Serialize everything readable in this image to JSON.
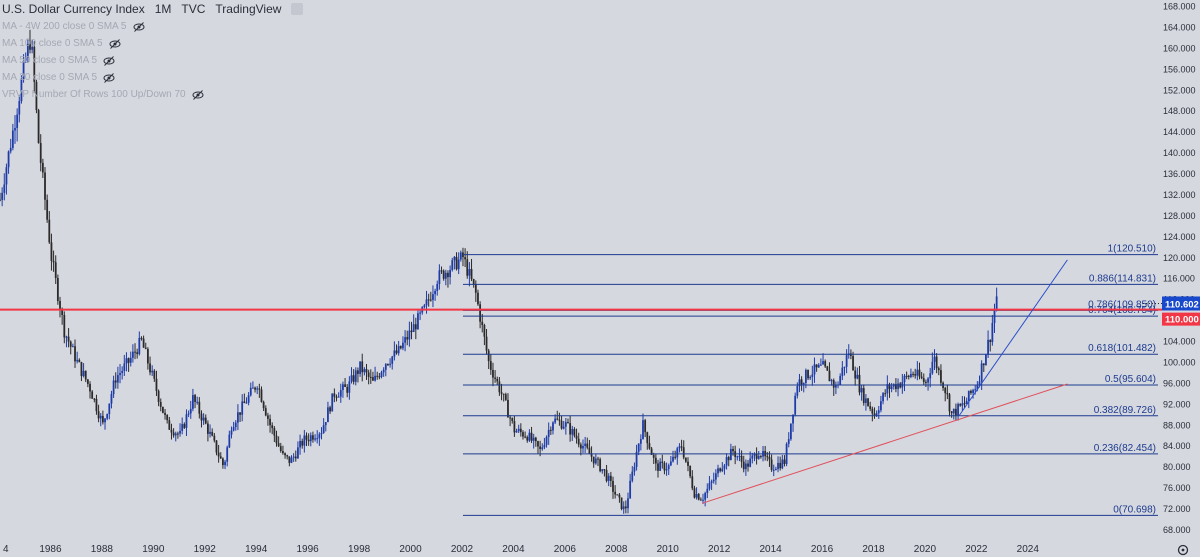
{
  "header": {
    "symbol": "U.S. Dollar Currency Index",
    "interval": "1M",
    "exchange": "TVC",
    "source": "TradingView"
  },
  "indicators": [
    {
      "label": "MA - 4W 200 close 0 SMA 5"
    },
    {
      "label": "MA 100 close 0 SMA 5"
    },
    {
      "label": "MA 50 close 0 SMA 5"
    },
    {
      "label": "MA 20 close 0 SMA 5"
    },
    {
      "label": "VRVP Number Of Rows 100 Up/Down 70"
    }
  ],
  "colors": {
    "background": "#d6d8df",
    "candle_up": "#1e3ca8",
    "candle_down": "#2a2a2a",
    "fib_line": "#1c3b8f",
    "support_line": "#e0505a",
    "horizontal_level": "#f23645",
    "trend_channel": "#2b50c8",
    "last_price_bg": "#1848cc"
  },
  "price_axis": {
    "ticks": [
      "168.000",
      "164.000",
      "160.000",
      "156.000",
      "152.000",
      "148.000",
      "144.000",
      "140.000",
      "136.000",
      "132.000",
      "128.000",
      "124.000",
      "120.000",
      "116.000",
      "112.000",
      "108.000",
      "104.000",
      "100.000",
      "96.000",
      "92.000",
      "88.000",
      "84.000",
      "80.000",
      "76.000",
      "72.000",
      "68.000"
    ],
    "last_price": "110.602",
    "level_price": "110.000"
  },
  "time_axis": {
    "ticks": [
      "4",
      "1986",
      "1988",
      "1990",
      "1992",
      "1994",
      "1996",
      "1998",
      "2000",
      "2002",
      "2004",
      "2006",
      "2008",
      "2010",
      "2012",
      "2014",
      "2016",
      "2018",
      "2020",
      "2022",
      "2024"
    ]
  },
  "fib_labels": [
    {
      "text": "1(120.510)"
    },
    {
      "text": "0.886(114.831)"
    },
    {
      "text": "0.786(109.850)"
    },
    {
      "text": "0.764(108.754)"
    },
    {
      "text": "0.618(101.482)"
    },
    {
      "text": "0.5(95.604)"
    },
    {
      "text": "0.382(89.726)"
    },
    {
      "text": "0.236(82.454)"
    },
    {
      "text": "0(70.698)"
    }
  ],
  "chart_data": {
    "type": "line",
    "title": "U.S. Dollar Currency Index",
    "xlabel": "",
    "ylabel": "",
    "x_range": [
      1984.0,
      2025.5
    ],
    "ylim": [
      66,
      170
    ],
    "grid": false,
    "series": [
      {
        "name": "U.S. Dollar Currency Index",
        "style": "monthly candles",
        "x": [
          1984.0,
          1984.5,
          1985.0,
          1985.2,
          1985.5,
          1986.0,
          1986.5,
          1987.0,
          1987.5,
          1988.0,
          1988.5,
          1989.0,
          1989.5,
          1990.0,
          1990.5,
          1991.0,
          1991.5,
          1992.0,
          1992.7,
          1993.0,
          1993.5,
          1994.0,
          1994.5,
          1995.0,
          1995.3,
          1995.8,
          1996.5,
          1997.0,
          1997.5,
          1998.0,
          1998.5,
          1999.0,
          1999.5,
          2000.0,
          2000.5,
          2001.0,
          2001.5,
          2002.0,
          2002.5,
          2003.0,
          2003.5,
          2004.0,
          2004.5,
          2005.0,
          2005.5,
          2006.0,
          2006.5,
          2007.0,
          2007.5,
          2008.0,
          2008.3,
          2008.8,
          2009.0,
          2009.5,
          2010.0,
          2010.5,
          2011.0,
          2011.3,
          2011.8,
          2012.0,
          2012.5,
          2013.0,
          2013.5,
          2014.0,
          2014.5,
          2015.0,
          2015.5,
          2016.0,
          2016.5,
          2017.0,
          2017.5,
          2018.0,
          2018.5,
          2019.0,
          2019.5,
          2020.0,
          2020.3,
          2020.8,
          2021.0,
          2021.5,
          2022.0,
          2022.5,
          2022.8
        ],
        "y": [
          131,
          144,
          158,
          162,
          142,
          120,
          106,
          100,
          95,
          88,
          97,
          100,
          104,
          96,
          88,
          86,
          93,
          88,
          80,
          88,
          92,
          96,
          88,
          82,
          81,
          85,
          87,
          94,
          95,
          99,
          96,
          100,
          102,
          106,
          110,
          116,
          118,
          120,
          113,
          100,
          94,
          87,
          86,
          83,
          89,
          88,
          85,
          82,
          79,
          74,
          71.5,
          84,
          88,
          80,
          80,
          84,
          75,
          74,
          78,
          80,
          83,
          80,
          83,
          80,
          81,
          96,
          98,
          99,
          95,
          102,
          94,
          90,
          95,
          96,
          98,
          96,
          101,
          94,
          90,
          92,
          96,
          105,
          114
        ]
      }
    ],
    "levels": [
      {
        "name": "horizontal level",
        "y": 110.0
      },
      {
        "name": "last price",
        "y": 110.602
      }
    ],
    "fibonacci": [
      {
        "ratio": 1,
        "value": 120.51
      },
      {
        "ratio": 0.886,
        "value": 114.831
      },
      {
        "ratio": 0.786,
        "value": 109.85
      },
      {
        "ratio": 0.764,
        "value": 108.754
      },
      {
        "ratio": 0.618,
        "value": 101.482
      },
      {
        "ratio": 0.5,
        "value": 95.604
      },
      {
        "ratio": 0.382,
        "value": 89.726
      },
      {
        "ratio": 0.236,
        "value": 82.454
      },
      {
        "ratio": 0,
        "value": 70.698
      }
    ],
    "trendlines": [
      {
        "name": "support",
        "points": [
          [
            2011.3,
            73.0
          ],
          [
            2025.5,
            95.8
          ]
        ]
      },
      {
        "name": "channel",
        "points": [
          [
            2021.3,
            89.8
          ],
          [
            2025.5,
            119.5
          ]
        ]
      }
    ]
  }
}
